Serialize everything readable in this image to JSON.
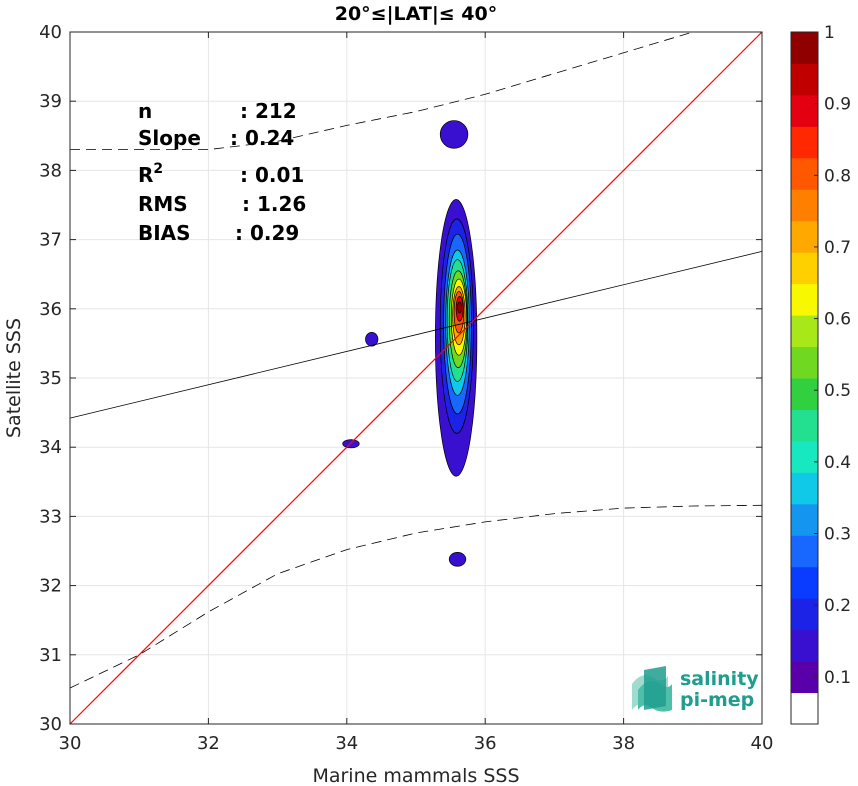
{
  "chart_data": {
    "type": "heatmap",
    "title": "20°≤|LAT|≤ 40°",
    "xlabel": "Marine mammals SSS",
    "ylabel": "Satellite SSS",
    "xlim": [
      30,
      40
    ],
    "ylim": [
      30,
      40
    ],
    "xticks": [
      30,
      32,
      34,
      36,
      38,
      40
    ],
    "yticks": [
      30,
      31,
      32,
      33,
      34,
      35,
      36,
      37,
      38,
      39,
      40
    ],
    "grid": true,
    "stats": [
      {
        "label": "n",
        "value": ": 212"
      },
      {
        "label": "Slope",
        "value": ": 0.24"
      },
      {
        "label": "R",
        "sup": "2",
        "value": ": 0.01"
      },
      {
        "label": "RMS",
        "value": ": 1.26"
      },
      {
        "label": "BIAS",
        "value": ": 0.29"
      }
    ],
    "identity_line": {
      "color": "#ff0000",
      "points": [
        [
          30,
          30
        ],
        [
          40,
          40
        ]
      ]
    },
    "regression_line": {
      "color": "#000000",
      "slope": 0.24,
      "points": [
        [
          30,
          34.42
        ],
        [
          40,
          36.83
        ]
      ]
    },
    "envelope_upper": [
      [
        30,
        38.3
      ],
      [
        31,
        38.3
      ],
      [
        32,
        38.3
      ],
      [
        33,
        38.42
      ],
      [
        34,
        38.65
      ],
      [
        35,
        38.85
      ],
      [
        36,
        39.1
      ],
      [
        37,
        39.4
      ],
      [
        38,
        39.7
      ],
      [
        39,
        40.0
      ]
    ],
    "envelope_lower": [
      [
        30,
        30.52
      ],
      [
        31,
        31.0
      ],
      [
        32,
        31.62
      ],
      [
        33,
        32.17
      ],
      [
        34,
        32.52
      ],
      [
        35,
        32.76
      ],
      [
        36,
        32.92
      ],
      [
        37,
        33.04
      ],
      [
        38,
        33.12
      ],
      [
        39,
        33.15
      ],
      [
        40,
        33.16
      ]
    ],
    "density_contours": [
      {
        "level": 0.05,
        "cx": 35.58,
        "cy": 35.58,
        "rx": 0.3,
        "ry": 2.0
      },
      {
        "level": 0.05,
        "cx": 35.55,
        "cy": 38.52,
        "rx": 0.2,
        "ry": 0.2
      },
      {
        "level": 0.05,
        "cx": 35.6,
        "cy": 32.38,
        "rx": 0.12,
        "ry": 0.1
      },
      {
        "level": 0.05,
        "cx": 34.36,
        "cy": 35.56,
        "rx": 0.09,
        "ry": 0.1
      },
      {
        "level": 0.05,
        "cx": 34.06,
        "cy": 34.05,
        "rx": 0.12,
        "ry": 0.06
      },
      {
        "level": 0.1,
        "cx": 35.59,
        "cy": 35.75,
        "rx": 0.24,
        "ry": 1.55
      },
      {
        "level": 0.2,
        "cx": 35.6,
        "cy": 35.78,
        "rx": 0.2,
        "ry": 1.3
      },
      {
        "level": 0.3,
        "cx": 35.6,
        "cy": 35.8,
        "rx": 0.17,
        "ry": 1.05
      },
      {
        "level": 0.4,
        "cx": 35.6,
        "cy": 35.83,
        "rx": 0.15,
        "ry": 0.88
      },
      {
        "level": 0.5,
        "cx": 35.61,
        "cy": 35.85,
        "rx": 0.13,
        "ry": 0.7
      },
      {
        "level": 0.6,
        "cx": 35.62,
        "cy": 35.88,
        "rx": 0.11,
        "ry": 0.55
      },
      {
        "level": 0.7,
        "cx": 35.62,
        "cy": 35.9,
        "rx": 0.09,
        "ry": 0.42
      },
      {
        "level": 0.8,
        "cx": 35.62,
        "cy": 35.95,
        "rx": 0.07,
        "ry": 0.3
      },
      {
        "level": 0.9,
        "cx": 35.63,
        "cy": 36.0,
        "rx": 0.05,
        "ry": 0.18
      },
      {
        "level": 1.0,
        "cx": 35.63,
        "cy": 36.02,
        "rx": 0.03,
        "ry": 0.08
      }
    ],
    "colorbar": {
      "ticks": [
        "0.1",
        "0.2",
        "0.3",
        "0.4",
        "0.5",
        "0.6",
        "0.7",
        "0.8",
        "0.9",
        "1"
      ],
      "colors": [
        "#ffffff",
        "#5a00aa",
        "#3a10d0",
        "#1c22e6",
        "#0a3cff",
        "#1868ff",
        "#1496f0",
        "#10c8e8",
        "#18e8c0",
        "#22e090",
        "#30d040",
        "#70d820",
        "#a8e818",
        "#f8f800",
        "#ffd000",
        "#ffa800",
        "#ff8000",
        "#ff5800",
        "#ff2800",
        "#e40010",
        "#c00000",
        "#900000"
      ]
    },
    "logo": {
      "line1": "salinity",
      "line2": "pi-mep"
    }
  }
}
